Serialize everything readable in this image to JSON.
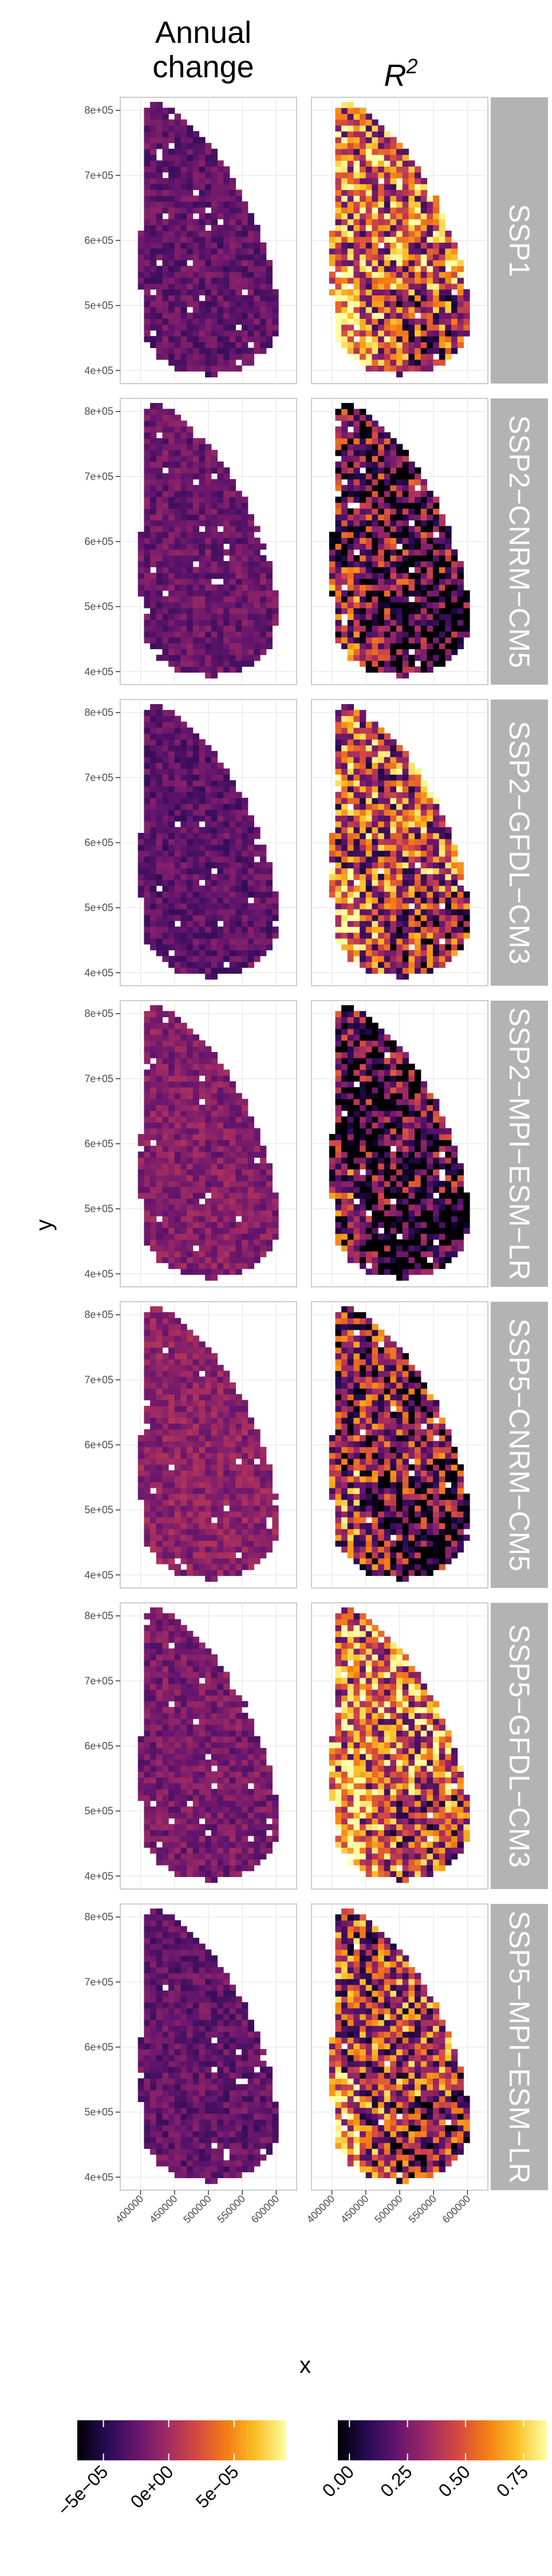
{
  "chart_data": {
    "type": "heatmap",
    "column_titles": [
      {
        "line1": "Annual",
        "line2": "change"
      },
      {
        "base": "R",
        "sup": "2"
      }
    ],
    "row_labels": [
      "SSP1",
      "SSP2−CNRM−CM5",
      "SSP2−GFDL−CM3",
      "SSP2−MPI−ESM−LR",
      "SSP5−CNRM−CM5",
      "SSP5−GFDL−CM3",
      "SSP5−MPI−ESM−LR"
    ],
    "xlabel": "x",
    "ylabel": "y",
    "xlim": [
      370000,
      630000
    ],
    "ylim": [
      380000,
      820000
    ],
    "x_ticks": [
      "400000",
      "450000",
      "500000",
      "550000",
      "600000"
    ],
    "x_tick_values": [
      400000,
      450000,
      500000,
      550000,
      600000
    ],
    "y_ticks": [
      "4e+05",
      "5e+05",
      "6e+05",
      "7e+05",
      "8e+05"
    ],
    "y_tick_values": [
      400000,
      500000,
      600000,
      700000,
      800000
    ],
    "panel_fill_level": {
      "annual_change": [
        0.28,
        0.3,
        0.27,
        0.36,
        0.38,
        0.33,
        0.28
      ],
      "r2": [
        0.62,
        0.25,
        0.55,
        0.18,
        0.35,
        0.65,
        0.5
      ]
    },
    "legends": [
      {
        "title": "Annual change",
        "range": [
          -7e-05,
          9e-05
        ],
        "ticks": [
          "−5e−05",
          "0e+00",
          "5e−05"
        ],
        "tick_values": [
          -5e-05,
          0,
          5e-05
        ]
      },
      {
        "title": "R2",
        "range": [
          -0.05,
          0.85
        ],
        "ticks": [
          "0.00",
          "0.25",
          "0.50",
          "0.75"
        ],
        "tick_values": [
          0,
          0.25,
          0.5,
          0.75
        ]
      }
    ],
    "colormap": "inferno",
    "colormap_stops": [
      "#000004",
      "#280b54",
      "#65156e",
      "#9f2a63",
      "#d44842",
      "#f57d15",
      "#fac127",
      "#fcffa4"
    ],
    "grid": true
  }
}
